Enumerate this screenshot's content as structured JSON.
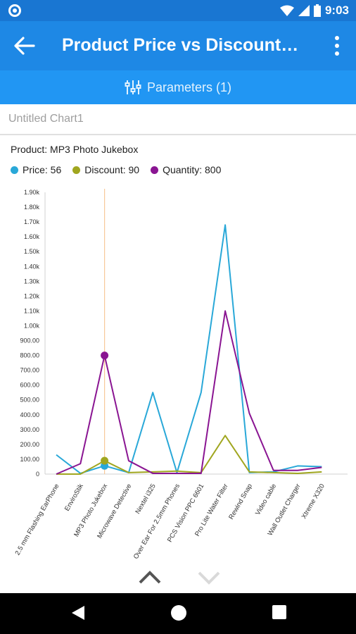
{
  "status_bar": {
    "time": "9:03"
  },
  "app_bar": {
    "title": "Product Price vs Discount C..."
  },
  "params": {
    "label": "Parameters (1)"
  },
  "chart_name": {
    "placeholder": "Untitled Chart1"
  },
  "selection": {
    "product_label": "Product: MP3 Photo Jukebox"
  },
  "legend": [
    {
      "text": "Price: 56",
      "color": "#29a8d8"
    },
    {
      "text": "Discount: 90",
      "color": "#a0a61f"
    },
    {
      "text": "Quantity: 800",
      "color": "#8a1592"
    }
  ],
  "chart_data": {
    "type": "line",
    "categories": [
      "2.5 mm Flashing EarPhone",
      "EnviroStik",
      "MP3 Photo Jukebox",
      "Microwave Detective",
      "Nextel i325",
      "Over Ear For 2.5mm Phones",
      "PCS Vision PPC 6601",
      "Pro Lite Water Filter",
      "Rewind Snap",
      "Video cable",
      "Wall Outlet Charger",
      "Xtreme X320"
    ],
    "series": [
      {
        "name": "Price",
        "color": "#29a8d8",
        "values": [
          130,
          5,
          56,
          10,
          550,
          10,
          550,
          1680,
          10,
          15,
          55,
          50
        ]
      },
      {
        "name": "Discount",
        "color": "#a0a61f",
        "values": [
          0,
          0,
          90,
          10,
          15,
          20,
          10,
          260,
          15,
          10,
          5,
          15
        ]
      },
      {
        "name": "Quantity",
        "color": "#8a1592",
        "values": [
          0,
          70,
          800,
          90,
          5,
          5,
          5,
          1100,
          410,
          25,
          25,
          45
        ]
      }
    ],
    "y_ticks": [
      "0",
      "100.00",
      "200.00",
      "300.00",
      "400.00",
      "500.00",
      "600.00",
      "700.00",
      "800.00",
      "900.00",
      "1.00k",
      "1.10k",
      "1.20k",
      "1.30k",
      "1.40k",
      "1.50k",
      "1.60k",
      "1.70k",
      "1.80k",
      "1.90k"
    ],
    "ylim": [
      0,
      1900
    ],
    "highlight_index": 2,
    "grid": false,
    "legend_position": "top-left"
  }
}
